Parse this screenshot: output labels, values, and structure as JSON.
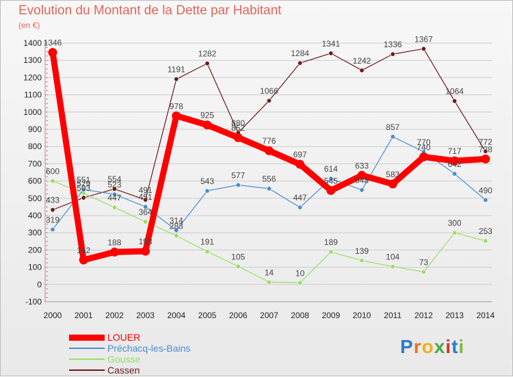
{
  "header": {
    "title": "Evolution du Montant de la Dette par Habitant",
    "unit": "(en €)"
  },
  "logo": {
    "text": "Proxiti"
  },
  "colors": {
    "louer": "#ff0000",
    "prechacq": "#4a8ccc",
    "gousse": "#99dd66",
    "cassen": "#6b1a1a",
    "grid": "#cccccc",
    "axis_text": "#222222"
  },
  "chart_data": {
    "type": "line",
    "title": "Evolution du Montant de la Dette par Habitant",
    "ylabel": "(en €)",
    "categories": [
      "2000",
      "2001",
      "2002",
      "2003",
      "2004",
      "2005",
      "2006",
      "2007",
      "2008",
      "2009",
      "2010",
      "2011",
      "2012",
      "2013",
      "2014"
    ],
    "ylim": [
      -100,
      1400
    ],
    "yticks": [
      -100,
      0,
      100,
      200,
      300,
      400,
      500,
      600,
      700,
      800,
      900,
      1000,
      1100,
      1200,
      1300,
      1400
    ],
    "grid": "horizontal",
    "legend_position": "bottom-left",
    "series": [
      {
        "name": "LOUER",
        "color_key": "louer",
        "values": [
          1346,
          142,
          188,
          193,
          978,
          925,
          852,
          776,
          697,
          545,
          633,
          583,
          740,
          717,
          728
        ]
      },
      {
        "name": "Préchacq-les-Bains",
        "color_key": "prechacq",
        "values": [
          319,
          551,
          523,
          451,
          314,
          543,
          577,
          556,
          447,
          614,
          548,
          857,
          770,
          642,
          490
        ]
      },
      {
        "name": "Gousse",
        "color_key": "gousse",
        "values": [
          600,
          529,
          447,
          364,
          283,
          191,
          105,
          14,
          10,
          189,
          139,
          104,
          73,
          300,
          253
        ]
      },
      {
        "name": "Cassen",
        "color_key": "cassen",
        "values": [
          433,
          503,
          554,
          491,
          1191,
          1282,
          880,
          1066,
          1284,
          1341,
          1242,
          1336,
          1367,
          1064,
          772
        ]
      }
    ]
  }
}
